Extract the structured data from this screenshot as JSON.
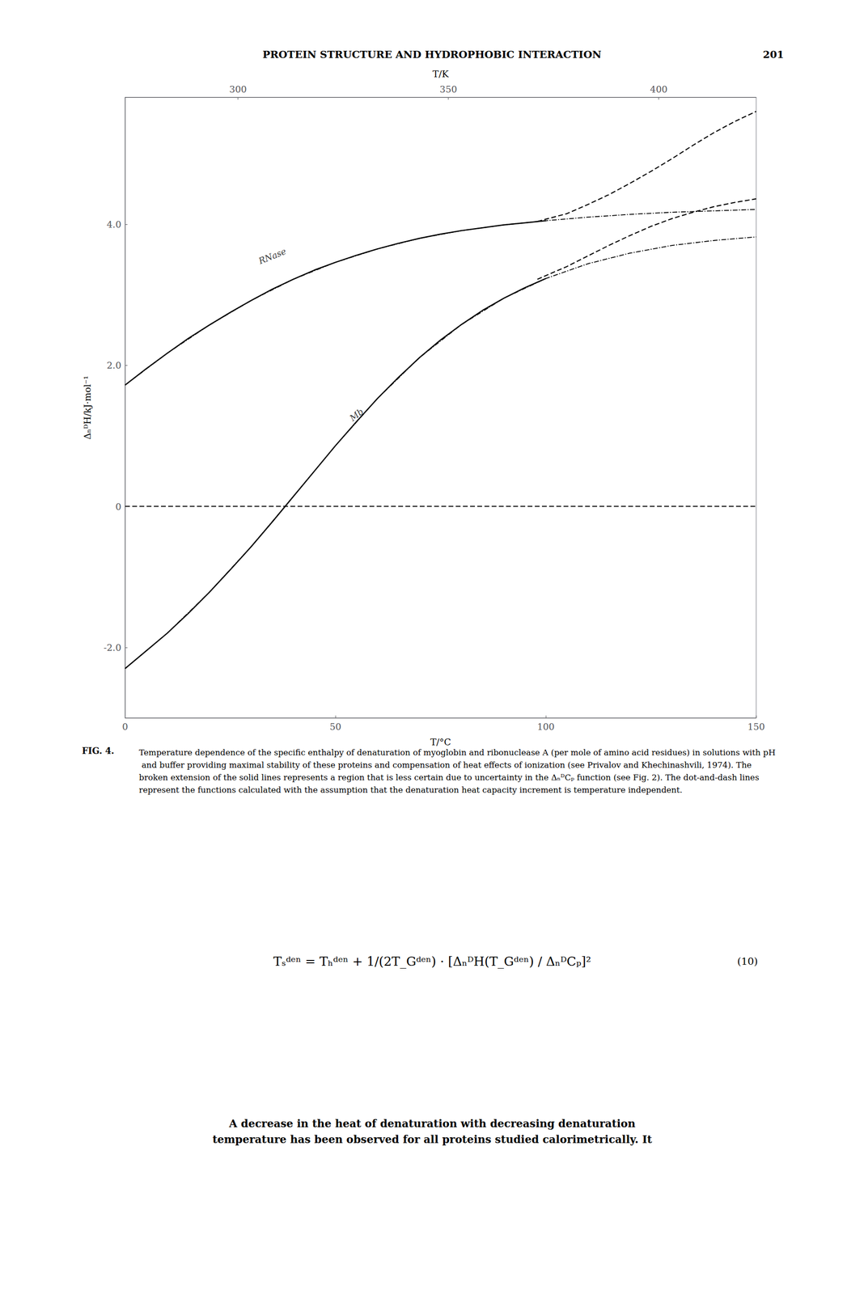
{
  "chart_data": {
    "type": "line",
    "title": "PROTEIN STRUCTURE AND HYDROPHOBIC INTERACTION",
    "page_number": "201",
    "xlabel": "T/°C",
    "x2label": "T/K",
    "ylabel": "ΔₙᴰH/kJ·mol⁻¹",
    "xlim": [
      0,
      150
    ],
    "xticks": [
      0,
      50,
      100,
      150
    ],
    "x2lim": [
      273.15,
      423.15
    ],
    "x2ticks": [
      300,
      350,
      400
    ],
    "ylim": [
      -3.0,
      5.8
    ],
    "yticks": [
      {
        "value": -2.0,
        "label": "-2.0"
      },
      0,
      {
        "value": 2.0,
        "label": "2.0"
      },
      {
        "value": 4.0,
        "label": "4.0"
      }
    ],
    "grid": false,
    "series": [
      {
        "color": "#000000",
        "line_style": "dashed",
        "x": [
          0,
          150
        ],
        "values": [
          0,
          0
        ]
      },
      {
        "color": "#000000",
        "line_style": "solid",
        "x": [
          0,
          5,
          10,
          15,
          20,
          25,
          30,
          35,
          40,
          45,
          50,
          55,
          60,
          65,
          70,
          75,
          80,
          85,
          90,
          95,
          100
        ],
        "values": [
          1.72,
          1.95,
          2.17,
          2.38,
          2.57,
          2.75,
          2.92,
          3.08,
          3.22,
          3.35,
          3.46,
          3.56,
          3.65,
          3.73,
          3.8,
          3.86,
          3.91,
          3.95,
          3.99,
          4.02,
          4.05
        ]
      },
      {
        "color": "#000000",
        "line_style": "dashed",
        "x": [
          98,
          105,
          110,
          115,
          120,
          125,
          130,
          135,
          140,
          145,
          150
        ],
        "values": [
          4.04,
          4.15,
          4.28,
          4.42,
          4.58,
          4.75,
          4.93,
          5.12,
          5.3,
          5.46,
          5.6
        ]
      },
      {
        "color": "#000000",
        "line_style": "dashdot",
        "x": [
          0,
          10,
          20,
          30,
          40,
          50,
          60,
          70,
          80,
          90,
          100,
          110,
          120,
          130,
          140,
          150
        ],
        "values": [
          1.72,
          2.17,
          2.57,
          2.92,
          3.22,
          3.46,
          3.65,
          3.8,
          3.91,
          3.99,
          4.05,
          4.1,
          4.14,
          4.17,
          4.19,
          4.21
        ]
      },
      {
        "color": "#000000",
        "line_style": "solid",
        "x": [
          0,
          5,
          10,
          15,
          20,
          25,
          30,
          35,
          40,
          45,
          50,
          55,
          60,
          65,
          70,
          75,
          80,
          85,
          90,
          95,
          100
        ],
        "values": [
          -2.3,
          -2.05,
          -1.8,
          -1.52,
          -1.22,
          -0.9,
          -0.57,
          -0.22,
          0.14,
          0.5,
          0.86,
          1.2,
          1.53,
          1.83,
          2.11,
          2.36,
          2.58,
          2.78,
          2.95,
          3.1,
          3.23
        ]
      },
      {
        "color": "#000000",
        "line_style": "dashed",
        "x": [
          98,
          105,
          110,
          115,
          120,
          125,
          130,
          135,
          140,
          145,
          150
        ],
        "values": [
          3.22,
          3.4,
          3.55,
          3.7,
          3.84,
          3.97,
          4.08,
          4.17,
          4.25,
          4.31,
          4.36
        ]
      },
      {
        "color": "#000000",
        "line_style": "dashdot",
        "x": [
          0,
          10,
          20,
          30,
          40,
          50,
          60,
          70,
          80,
          90,
          100,
          110,
          120,
          130,
          140,
          150
        ],
        "values": [
          -2.3,
          -1.8,
          -1.22,
          -0.57,
          0.14,
          0.86,
          1.53,
          2.11,
          2.58,
          2.95,
          3.23,
          3.44,
          3.59,
          3.7,
          3.77,
          3.82
        ]
      }
    ],
    "annotations": [
      {
        "text": "RNase",
        "x": 35,
        "y": 3.55
      },
      {
        "text": "Mb",
        "x": 55,
        "y": 1.3
      }
    ],
    "fig_label": "FIG. 4.",
    "caption": "Temperature dependence of the specific enthalpy of denaturation of myoglobin and ribonuclease A (per mole of amino acid residues) in solutions with pH and buffer providing maximal stability of these proteins and compensation of heat effects of ionization (see Privalov and Khechinashvili, 1974). The broken extension of the solid lines represents a region that is less certain due to uncertainty in the ΔₙᴰCₚ function (see Fig. 2). The dot-and-dash lines represent the functions calculated with the assumption that the denaturation heat capacity increment is temperature independent.",
    "formula": "Tₛᵈᵉⁿ = Tₕᵈᵉⁿ + 1/(2T_Gᵈᵉⁿ) · [ΔₙᴰH(T_Gᵈᵉⁿ) / ΔₙᴰCₚ]²",
    "equation_number": "(10)",
    "body_text": [
      "A decrease in the heat of denaturation with decreasing denaturation",
      "temperature has been observed for all proteins studied calorimetrically. It"
    ]
  }
}
